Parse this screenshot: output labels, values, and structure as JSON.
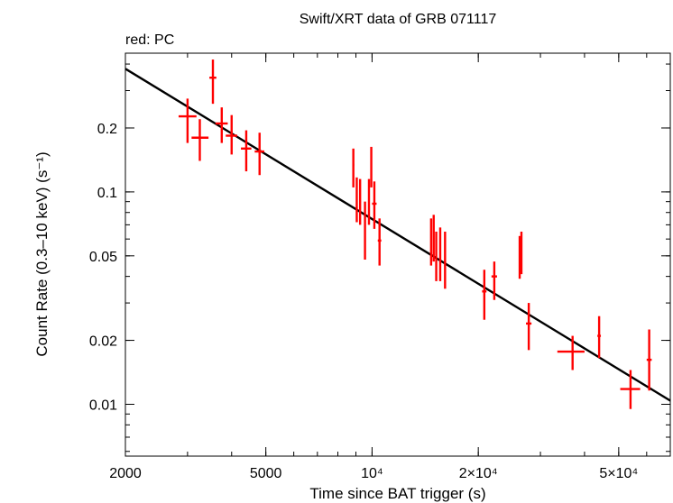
{
  "chart_data": {
    "type": "scatter",
    "title": "Swift/XRT data of GRB 071117",
    "subtitle": "red: PC",
    "xlabel": "Time since BAT trigger (s)",
    "ylabel": "Count Rate (0.3–10 keV) (s⁻¹)",
    "xscale": "log",
    "yscale": "log",
    "xlim": [
      2000,
      70000
    ],
    "ylim": [
      0.0057,
      0.45
    ],
    "x_ticks": [
      {
        "value": 2000,
        "label": "2000"
      },
      {
        "value": 5000,
        "label": "5000"
      },
      {
        "value": 10000,
        "label": "10⁴"
      },
      {
        "value": 20000,
        "label": "2×10⁴"
      },
      {
        "value": 50000,
        "label": "5×10⁴"
      }
    ],
    "y_ticks": [
      {
        "value": 0.01,
        "label": "0.01"
      },
      {
        "value": 0.02,
        "label": "0.02"
      },
      {
        "value": 0.05,
        "label": "0.05"
      },
      {
        "value": 0.1,
        "label": "0.1"
      },
      {
        "value": 0.2,
        "label": "0.2"
      }
    ],
    "series": [
      {
        "name": "PC",
        "color": "#ff0000",
        "points": [
          {
            "x": 3000,
            "xlo": 2830,
            "xhi": 3180,
            "y": 0.227,
            "ylo": 0.17,
            "yhi": 0.275
          },
          {
            "x": 3250,
            "xlo": 3080,
            "xhi": 3440,
            "y": 0.18,
            "ylo": 0.14,
            "yhi": 0.22
          },
          {
            "x": 3540,
            "xlo": 3460,
            "xhi": 3620,
            "y": 0.345,
            "ylo": 0.26,
            "yhi": 0.42
          },
          {
            "x": 3750,
            "xlo": 3600,
            "xhi": 3900,
            "y": 0.21,
            "ylo": 0.17,
            "yhi": 0.25
          },
          {
            "x": 4000,
            "xlo": 3850,
            "xhi": 4150,
            "y": 0.184,
            "ylo": 0.15,
            "yhi": 0.23
          },
          {
            "x": 4400,
            "xlo": 4250,
            "xhi": 4550,
            "y": 0.16,
            "ylo": 0.125,
            "yhi": 0.195
          },
          {
            "x": 4800,
            "xlo": 4650,
            "xhi": 4950,
            "y": 0.155,
            "ylo": 0.12,
            "yhi": 0.19
          },
          {
            "x": 8850,
            "xlo": 8800,
            "xhi": 8900,
            "y": 0.134,
            "ylo": 0.105,
            "yhi": 0.16
          },
          {
            "x": 9050,
            "xlo": 9000,
            "xhi": 9100,
            "y": 0.092,
            "ylo": 0.072,
            "yhi": 0.117
          },
          {
            "x": 9250,
            "xlo": 9200,
            "xhi": 9300,
            "y": 0.09,
            "ylo": 0.07,
            "yhi": 0.115
          },
          {
            "x": 9550,
            "xlo": 9500,
            "xhi": 9600,
            "y": 0.067,
            "ylo": 0.048,
            "yhi": 0.09
          },
          {
            "x": 9800,
            "xlo": 9750,
            "xhi": 9850,
            "y": 0.09,
            "ylo": 0.07,
            "yhi": 0.115
          },
          {
            "x": 9950,
            "xlo": 9900,
            "xhi": 10000,
            "y": 0.133,
            "ylo": 0.105,
            "yhi": 0.163
          },
          {
            "x": 10150,
            "xlo": 10000,
            "xhi": 10300,
            "y": 0.088,
            "ylo": 0.067,
            "yhi": 0.112
          },
          {
            "x": 10500,
            "xlo": 10380,
            "xhi": 10620,
            "y": 0.059,
            "ylo": 0.045,
            "yhi": 0.075
          },
          {
            "x": 14700,
            "xlo": 14650,
            "xhi": 14750,
            "y": 0.058,
            "ylo": 0.045,
            "yhi": 0.075
          },
          {
            "x": 14950,
            "xlo": 14900,
            "xhi": 15000,
            "y": 0.061,
            "ylo": 0.047,
            "yhi": 0.078
          },
          {
            "x": 15200,
            "xlo": 15150,
            "xhi": 15250,
            "y": 0.05,
            "ylo": 0.038,
            "yhi": 0.065
          },
          {
            "x": 15600,
            "xlo": 15550,
            "xhi": 15650,
            "y": 0.052,
            "ylo": 0.038,
            "yhi": 0.068
          },
          {
            "x": 16100,
            "xlo": 16050,
            "xhi": 16150,
            "y": 0.048,
            "ylo": 0.035,
            "yhi": 0.065
          },
          {
            "x": 20800,
            "xlo": 20500,
            "xhi": 21100,
            "y": 0.034,
            "ylo": 0.025,
            "yhi": 0.043
          },
          {
            "x": 22200,
            "xlo": 21800,
            "xhi": 22600,
            "y": 0.04,
            "ylo": 0.031,
            "yhi": 0.047
          },
          {
            "x": 26200,
            "xlo": 26150,
            "xhi": 26250,
            "y": 0.05,
            "ylo": 0.039,
            "yhi": 0.062
          },
          {
            "x": 26500,
            "xlo": 26450,
            "xhi": 26550,
            "y": 0.052,
            "ylo": 0.041,
            "yhi": 0.065
          },
          {
            "x": 27800,
            "xlo": 27300,
            "xhi": 28300,
            "y": 0.024,
            "ylo": 0.018,
            "yhi": 0.03
          },
          {
            "x": 37000,
            "xlo": 33500,
            "xhi": 40000,
            "y": 0.0177,
            "ylo": 0.0145,
            "yhi": 0.021
          },
          {
            "x": 44000,
            "xlo": 43500,
            "xhi": 44500,
            "y": 0.021,
            "ylo": 0.0165,
            "yhi": 0.026
          },
          {
            "x": 54000,
            "xlo": 50500,
            "xhi": 57500,
            "y": 0.0118,
            "ylo": 0.0095,
            "yhi": 0.0145
          },
          {
            "x": 61000,
            "xlo": 60000,
            "xhi": 62000,
            "y": 0.0162,
            "ylo": 0.0116,
            "yhi": 0.0225
          }
        ]
      }
    ],
    "model": {
      "name": "power-law fit",
      "color": "#000000",
      "x": [
        2000,
        70000
      ],
      "y": [
        0.38,
        0.0104
      ]
    }
  }
}
